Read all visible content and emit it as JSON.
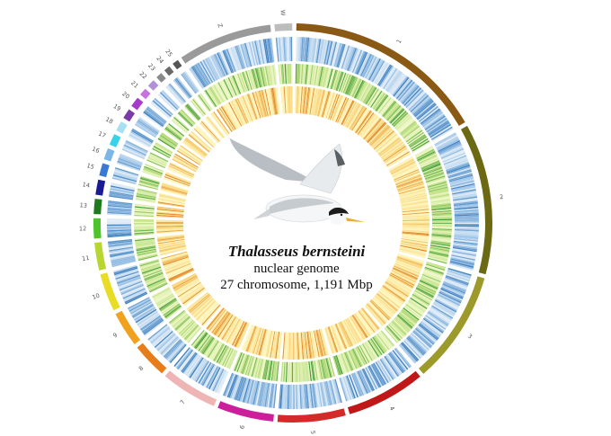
{
  "figure": {
    "species": "Thalasseus bernsteini",
    "line2": "nuclear genome",
    "line3": "27 chromosome, 1,191 Mbp"
  },
  "chromosomes": [
    {
      "label": "1",
      "color": "#8a5a14",
      "weight": 16
    },
    {
      "label": "2",
      "color": "#6b6914",
      "weight": 12
    },
    {
      "label": "3",
      "color": "#9c9a2a",
      "weight": 9
    },
    {
      "label": "4",
      "color": "#c01818",
      "weight": 6.3
    },
    {
      "label": "5",
      "color": "#d42a2a",
      "weight": 5.4
    },
    {
      "label": "6",
      "color": "#cc1f9c",
      "weight": 4.5
    },
    {
      "label": "7",
      "color": "#efb4b4",
      "weight": 4.5
    },
    {
      "label": "8",
      "color": "#e77c19",
      "weight": 2.8
    },
    {
      "label": "9",
      "color": "#f0a21e",
      "weight": 2.8
    },
    {
      "label": "10",
      "color": "#e8dc24",
      "weight": 3.0
    },
    {
      "label": "11",
      "color": "#b8d630",
      "weight": 2.2
    },
    {
      "label": "12",
      "color": "#4cc42a",
      "weight": 1.6
    },
    {
      "label": "13",
      "color": "#1e7a1e",
      "weight": 1.2
    },
    {
      "label": "14",
      "color": "#1a1a94",
      "weight": 1.2
    },
    {
      "label": "15",
      "color": "#3a78d6",
      "weight": 1.0
    },
    {
      "label": "16",
      "color": "#7ab6e8",
      "weight": 0.9
    },
    {
      "label": "17",
      "color": "#3ad2e8",
      "weight": 0.9
    },
    {
      "label": "18",
      "color": "#a6e0f2",
      "weight": 0.8
    },
    {
      "label": "19",
      "color": "#7a3aa8",
      "weight": 0.8
    },
    {
      "label": "20",
      "color": "#a63acc",
      "weight": 0.8
    },
    {
      "label": "21",
      "color": "#c872e0",
      "weight": 0.6
    },
    {
      "label": "22",
      "color": "#b090d8",
      "weight": 0.6
    },
    {
      "label": "23",
      "color": "#8a8a8a",
      "weight": 0.5
    },
    {
      "label": "24",
      "color": "#6a6a6a",
      "weight": 0.5
    },
    {
      "label": "25",
      "color": "#555555",
      "weight": 0.5
    },
    {
      "label": "Z",
      "color": "#9a9a9a",
      "weight": 7.5
    },
    {
      "label": "W",
      "color": "#bdbdbd",
      "weight": 1.4
    }
  ],
  "track_colors": {
    "blue": [
      "#e3eef8",
      "#9cc3e6",
      "#3d7fbf"
    ],
    "green": [
      "#eef7c8",
      "#b7dd7a",
      "#3e9a3a"
    ],
    "heat": [
      "#fff7c2",
      "#f9d47a",
      "#e07b1d"
    ]
  }
}
